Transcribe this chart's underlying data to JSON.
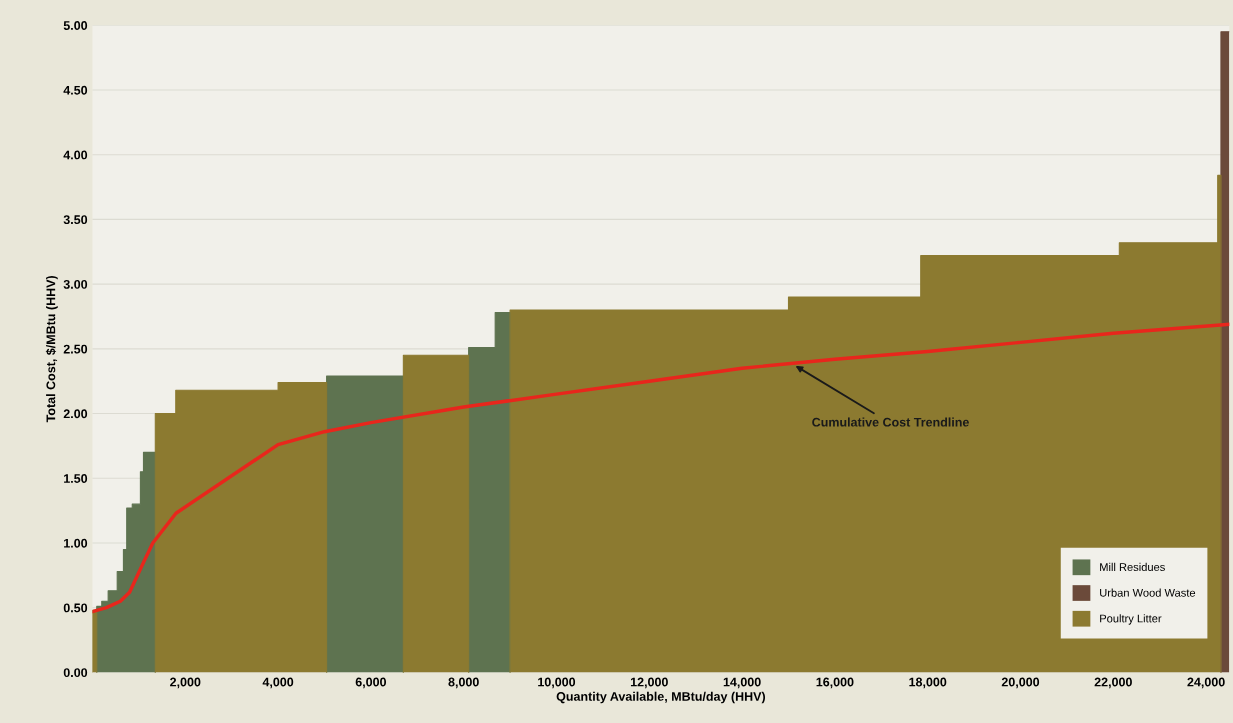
{
  "chart_data": {
    "type": "area",
    "xlabel": "Quantity Available, MBtu/day (HHV)",
    "ylabel": "Total Cost, $/MBtu (HHV)",
    "xlim": [
      0,
      24500
    ],
    "ylim": [
      0,
      5
    ],
    "xticks": [
      {
        "value": 2000,
        "label": "2,000"
      },
      {
        "value": 4000,
        "label": "4,000"
      },
      {
        "value": 6000,
        "label": "6,000"
      },
      {
        "value": 8000,
        "label": "8,000"
      },
      {
        "value": 10000,
        "label": "10,000"
      },
      {
        "value": 12000,
        "label": "12,000"
      },
      {
        "value": 14000,
        "label": "14,000"
      },
      {
        "value": 16000,
        "label": "16,000"
      },
      {
        "value": 18000,
        "label": "18,000"
      },
      {
        "value": 20000,
        "label": "20,000"
      },
      {
        "value": 22000,
        "label": "22,000"
      },
      {
        "value": 24000,
        "label": "24,000"
      }
    ],
    "yticks": [
      {
        "value": 0,
        "label": "0.00"
      },
      {
        "value": 0.5,
        "label": "0.50"
      },
      {
        "value": 1,
        "label": "1.00"
      },
      {
        "value": 1.5,
        "label": "1.50"
      },
      {
        "value": 2,
        "label": "2.00"
      },
      {
        "value": 2.5,
        "label": "2.50"
      },
      {
        "value": 3,
        "label": "3.00"
      },
      {
        "value": 3.5,
        "label": "3.50"
      },
      {
        "value": 4,
        "label": "4.00"
      },
      {
        "value": 4.5,
        "label": "4.50"
      },
      {
        "value": 5,
        "label": "5.00"
      }
    ],
    "grid": "y",
    "legend": "bottom right",
    "series": [
      {
        "name": "Mill Residues",
        "color": "#5e7350",
        "x": [
          92,
          92,
          200,
          200,
          338,
          338,
          533,
          533,
          667,
          667,
          738,
          738,
          857,
          857,
          1033,
          1033,
          1099,
          1099,
          1354,
          1354,
          3000,
          5046,
          5046,
          6700,
          6700,
          7500,
          8107,
          8107,
          8679,
          8679,
          9000,
          9000
        ],
        "values": [
          0,
          0.51,
          0.51,
          0.55,
          0.55,
          0.63,
          0.63,
          0.78,
          0.78,
          0.95,
          0.95,
          1.27,
          1.27,
          1.3,
          1.3,
          1.55,
          1.55,
          1.7,
          1.7,
          0,
          null,
          0,
          2.29,
          2.29,
          0,
          null,
          0,
          2.51,
          2.51,
          2.78,
          2.78,
          0
        ]
      },
      {
        "name": "Urban Wood Waste",
        "color": "#6b4a3a",
        "x": [
          24320,
          24320,
          24500
        ],
        "values": [
          0,
          4.95,
          4.95
        ]
      },
      {
        "name": "Poultry Litter",
        "color": "#8c7a30",
        "x": [
          0,
          0,
          92,
          92,
          700,
          1354,
          1354,
          1795,
          1795,
          4000,
          4000,
          5046,
          5046,
          6000,
          6700,
          6700,
          8107,
          8107,
          8500,
          9000,
          9000,
          15000,
          15000,
          17850,
          17850,
          22130,
          22130,
          24250,
          24250,
          24320,
          24320
        ],
        "values": [
          0,
          0.48,
          0.48,
          0,
          null,
          0,
          2.0,
          2.0,
          2.18,
          2.18,
          2.24,
          2.24,
          0,
          null,
          0,
          2.45,
          2.45,
          0,
          null,
          0,
          2.8,
          2.8,
          2.9,
          2.9,
          3.22,
          3.22,
          3.32,
          3.32,
          3.84,
          3.84,
          0
        ]
      },
      {
        "type": "line",
        "color": "#e8261c",
        "x": [
          0,
          300,
          600,
          800,
          1100,
          1300,
          1800,
          4000,
          5000,
          6000,
          8000,
          10000,
          12000,
          14000,
          16000,
          18000,
          20000,
          22000,
          24500
        ],
        "values": [
          0.47,
          0.5,
          0.55,
          0.62,
          0.85,
          1.0,
          1.23,
          1.76,
          1.86,
          1.93,
          2.05,
          2.15,
          2.25,
          2.35,
          2.42,
          2.48,
          2.55,
          2.62,
          2.69
        ]
      }
    ],
    "annotations": [
      {
        "text": "Cumulative Cost Trendline",
        "x": 15100,
        "y": 2.38
      }
    ]
  }
}
